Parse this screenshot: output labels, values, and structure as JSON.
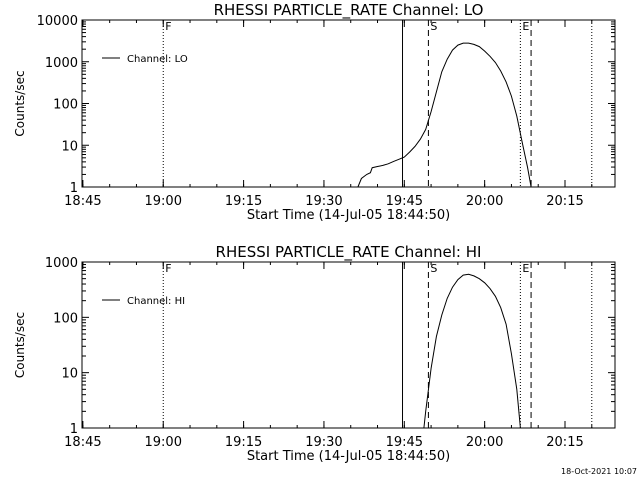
{
  "chart_data": [
    {
      "type": "line",
      "title": "RHESSI PARTICLE_RATE Channel: LO",
      "xlabel": "Start Time (14-Jul-05 18:44:50)",
      "ylabel": "Counts/sec",
      "y_scale": "log",
      "xlim": [
        "18:44:50",
        "20:24:20"
      ],
      "ylim": [
        1,
        10000
      ],
      "x_ticks": [
        "18:45",
        "19:00",
        "19:15",
        "19:30",
        "19:45",
        "20:00",
        "20:15"
      ],
      "y_ticks": [
        "1",
        "10",
        "100",
        "1000",
        "10000"
      ],
      "legend": {
        "placement": "top-left",
        "entries": [
          "Channel: LO"
        ]
      },
      "markers": [
        {
          "label": "F",
          "x": "19:00",
          "style": "dotted"
        },
        {
          "label": "",
          "x": "19:44:40",
          "style": "solid"
        },
        {
          "label": "S",
          "x": "19:49:30",
          "style": "dashed"
        },
        {
          "label": "E",
          "x": "20:06:40",
          "style": "dotted"
        },
        {
          "label": "",
          "x": "20:08:40",
          "style": "dashed"
        },
        {
          "label": "",
          "x": "20:20:00",
          "style": "dotted"
        }
      ],
      "series": [
        {
          "name": "Channel: LO",
          "x": [
            "19:36:20",
            "19:37:00",
            "19:38:00",
            "19:38:40",
            "19:39:00",
            "19:40:00",
            "19:41:00",
            "19:42:00",
            "19:43:00",
            "19:44:00",
            "19:45:00",
            "19:46:00",
            "19:47:00",
            "19:48:00",
            "19:49:00",
            "19:50:00",
            "19:51:00",
            "19:52:00",
            "19:53:00",
            "19:54:00",
            "19:55:00",
            "19:56:00",
            "19:57:00",
            "19:58:00",
            "19:59:00",
            "20:00:00",
            "20:01:00",
            "20:02:00",
            "20:03:00",
            "20:04:00",
            "20:05:00",
            "20:06:00",
            "20:07:00",
            "20:08:00",
            "20:08:40"
          ],
          "y": [
            1,
            1.6,
            2,
            2.2,
            2.9,
            3.1,
            3.3,
            3.6,
            4.1,
            4.6,
            5.2,
            6.9,
            9.4,
            14,
            24,
            64,
            190,
            575,
            1150,
            1900,
            2500,
            2800,
            2800,
            2600,
            2300,
            1800,
            1350,
            960,
            600,
            330,
            150,
            50,
            12,
            3,
            1
          ]
        }
      ]
    },
    {
      "type": "line",
      "title": "RHESSI PARTICLE_RATE Channel: HI",
      "xlabel": "Start Time (14-Jul-05 18:44:50)",
      "ylabel": "Counts/sec",
      "y_scale": "log",
      "xlim": [
        "18:44:50",
        "20:24:20"
      ],
      "ylim": [
        1,
        1000
      ],
      "x_ticks": [
        "18:45",
        "19:00",
        "19:15",
        "19:30",
        "19:45",
        "20:00",
        "20:15"
      ],
      "y_ticks": [
        "1",
        "10",
        "100",
        "1000"
      ],
      "legend": {
        "placement": "top-left",
        "entries": [
          "Channel: HI"
        ]
      },
      "markers": [
        {
          "label": "F",
          "x": "19:00",
          "style": "dotted"
        },
        {
          "label": "",
          "x": "19:44:40",
          "style": "solid"
        },
        {
          "label": "S",
          "x": "19:49:30",
          "style": "dashed"
        },
        {
          "label": "E",
          "x": "20:06:40",
          "style": "dotted"
        },
        {
          "label": "",
          "x": "20:08:40",
          "style": "dashed"
        },
        {
          "label": "",
          "x": "20:20:00",
          "style": "dotted"
        }
      ],
      "series": [
        {
          "name": "Channel: HI",
          "x": [
            "19:48:40",
            "19:49:00",
            "19:50:00",
            "19:51:00",
            "19:52:00",
            "19:53:00",
            "19:54:00",
            "19:55:00",
            "19:56:00",
            "19:57:00",
            "19:58:00",
            "19:59:00",
            "20:00:00",
            "20:01:00",
            "20:02:00",
            "20:03:00",
            "20:04:00",
            "20:05:00",
            "20:06:00",
            "20:06:40"
          ],
          "y": [
            1,
            2,
            12,
            45,
            110,
            220,
            350,
            480,
            580,
            600,
            560,
            500,
            420,
            330,
            240,
            150,
            75,
            22,
            5,
            1
          ]
        }
      ]
    }
  ],
  "footer": {
    "timestamp": "18-Oct-2021 10:07"
  }
}
